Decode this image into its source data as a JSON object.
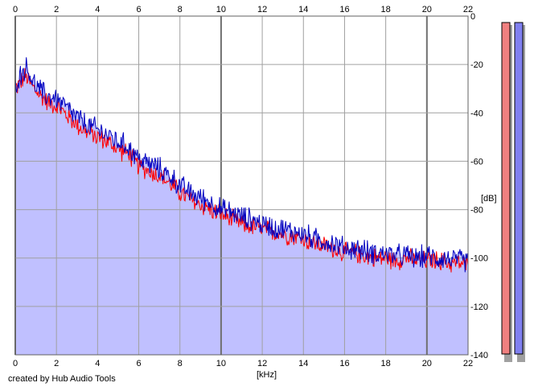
{
  "chart_data": {
    "type": "area",
    "xlabel": "[kHz]",
    "ylabel": "[dB]",
    "xlim": [
      0,
      22
    ],
    "ylim": [
      -140,
      0
    ],
    "x_ticks": [
      0,
      2,
      4,
      6,
      8,
      10,
      12,
      14,
      16,
      18,
      20,
      22
    ],
    "y_ticks": [
      -20,
      -40,
      -60,
      -80,
      -100,
      -120,
      -140
    ],
    "y_tick_top": "0",
    "grid": true,
    "series": [
      {
        "color": "#ff0000",
        "x": [
          0,
          0.5,
          1,
          1.5,
          2,
          2.5,
          3,
          3.5,
          4,
          4.5,
          5,
          5.5,
          6,
          6.5,
          7,
          7.5,
          8,
          8.5,
          9,
          9.5,
          10,
          10.5,
          11,
          11.5,
          12,
          12.5,
          13,
          13.5,
          14,
          14.5,
          15,
          15.5,
          16,
          16.5,
          17,
          17.5,
          18,
          18.5,
          19,
          19.5,
          20,
          20.5,
          21,
          21.5,
          22
        ],
        "values": [
          -30,
          -25,
          -31,
          -35,
          -37,
          -41,
          -45,
          -48,
          -50,
          -52,
          -55,
          -57,
          -62,
          -64,
          -66,
          -69,
          -73,
          -76,
          -78,
          -80,
          -82,
          -84,
          -86,
          -87,
          -88,
          -89,
          -90,
          -91,
          -92,
          -94,
          -95,
          -96,
          -98,
          -98,
          -99,
          -100,
          -100,
          -101,
          -100,
          -101,
          -101,
          -101,
          -102,
          -102,
          -103
        ]
      },
      {
        "color": "#0000c0",
        "x": [
          0,
          0.5,
          1,
          1.5,
          2,
          2.5,
          3,
          3.5,
          4,
          4.5,
          5,
          5.5,
          6,
          6.5,
          7,
          7.5,
          8,
          8.5,
          9,
          9.5,
          10,
          10.5,
          11,
          11.5,
          12,
          12.5,
          13,
          13.5,
          14,
          14.5,
          15,
          15.5,
          16,
          16.5,
          17,
          17.5,
          18,
          18.5,
          19,
          19.5,
          20,
          20.5,
          21,
          21.5,
          22
        ],
        "values": [
          -28,
          -21,
          -29,
          -33,
          -34,
          -38,
          -42,
          -45,
          -47,
          -49,
          -52,
          -54,
          -59,
          -61,
          -63,
          -66,
          -70,
          -73,
          -75,
          -77,
          -80,
          -81,
          -83,
          -84,
          -86,
          -87,
          -88,
          -89,
          -90,
          -92,
          -93,
          -94,
          -96,
          -96,
          -97,
          -98,
          -98,
          -99,
          -99,
          -100,
          -99,
          -100,
          -100,
          -101,
          -101
        ]
      }
    ],
    "level_meters": [
      {
        "color": "#f08080",
        "level": 1
      },
      {
        "color": "#8080f0",
        "level": 1
      }
    ],
    "fill_color": "#c0c0ff"
  },
  "footer": {
    "credit": "created by Hub Audio Tools"
  }
}
